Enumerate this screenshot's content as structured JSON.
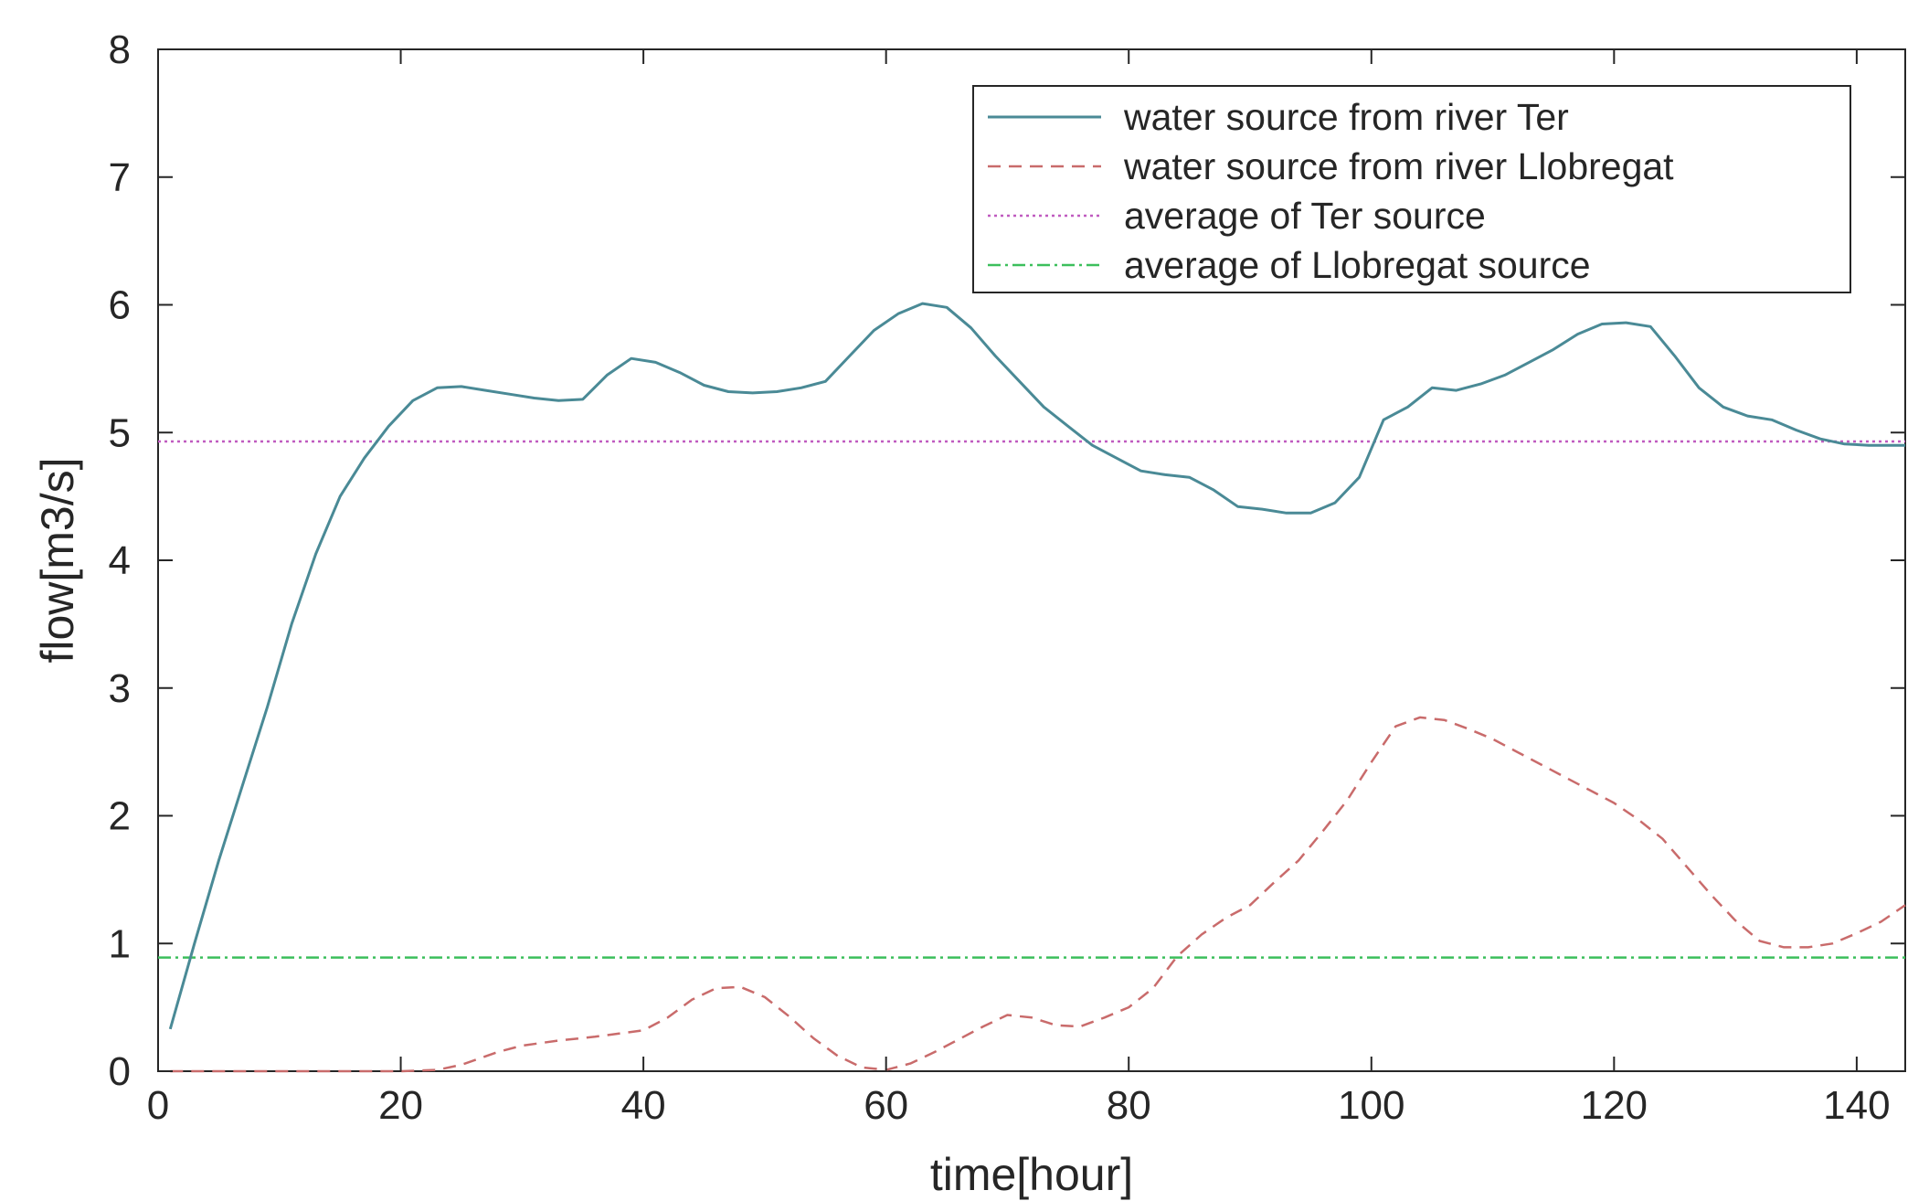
{
  "chart_data": {
    "type": "line",
    "title": "",
    "xlabel": "time[hour]",
    "ylabel": "flow[m3/s]",
    "xlim": [
      0,
      144
    ],
    "ylim": [
      0,
      8
    ],
    "xticks": [
      0,
      20,
      40,
      60,
      80,
      100,
      120,
      140
    ],
    "yticks": [
      0,
      1,
      2,
      3,
      4,
      5,
      6,
      7,
      8
    ],
    "grid": false,
    "legend_position": "top-right",
    "series": [
      {
        "name": "water source from river Ter",
        "style": "solid",
        "color": "#4a8a96",
        "x": [
          1,
          3,
          5,
          7,
          9,
          11,
          13,
          15,
          17,
          19,
          21,
          23,
          25,
          27,
          29,
          31,
          33,
          35,
          37,
          39,
          41,
          43,
          45,
          47,
          49,
          51,
          53,
          55,
          57,
          59,
          61,
          63,
          65,
          67,
          69,
          71,
          73,
          75,
          77,
          79,
          81,
          83,
          85,
          87,
          89,
          91,
          93,
          95,
          97,
          99,
          101,
          103,
          105,
          107,
          109,
          111,
          113,
          115,
          117,
          119,
          121,
          123,
          125,
          127,
          129,
          131,
          133,
          135,
          137,
          139,
          141,
          144
        ],
        "values": [
          0.33,
          1.0,
          1.65,
          2.25,
          2.85,
          3.5,
          4.05,
          4.5,
          4.8,
          5.05,
          5.25,
          5.35,
          5.36,
          5.33,
          5.3,
          5.27,
          5.25,
          5.26,
          5.45,
          5.58,
          5.55,
          5.47,
          5.37,
          5.32,
          5.31,
          5.32,
          5.35,
          5.4,
          5.6,
          5.8,
          5.93,
          6.01,
          5.98,
          5.82,
          5.6,
          5.4,
          5.2,
          5.05,
          4.9,
          4.8,
          4.7,
          4.67,
          4.65,
          4.55,
          4.42,
          4.4,
          4.37,
          4.37,
          4.45,
          4.65,
          5.1,
          5.2,
          5.35,
          5.33,
          5.38,
          5.45,
          5.55,
          5.65,
          5.77,
          5.85,
          5.86,
          5.83,
          5.6,
          5.35,
          5.2,
          5.13,
          5.1,
          5.02,
          4.95,
          4.91,
          4.9,
          4.9
        ]
      },
      {
        "name": "water source from river Llobregat",
        "style": "dashed",
        "color": "#c96b6b",
        "x": [
          1,
          5,
          10,
          15,
          20,
          23,
          25,
          28,
          30,
          33,
          36,
          40,
          42,
          44,
          46,
          48,
          50,
          52,
          54,
          56,
          58,
          60,
          62,
          64,
          66,
          68,
          70,
          72,
          74,
          76,
          78,
          80,
          82,
          84,
          86,
          88,
          90,
          92,
          94,
          96,
          98,
          100,
          102,
          104,
          106,
          108,
          110,
          112,
          114,
          116,
          118,
          120,
          122,
          124,
          126,
          128,
          130,
          132,
          134,
          136,
          138,
          140,
          142,
          144
        ],
        "values": [
          0.0,
          0.0,
          0.0,
          0.0,
          0.0,
          0.01,
          0.05,
          0.15,
          0.2,
          0.24,
          0.27,
          0.32,
          0.42,
          0.56,
          0.65,
          0.66,
          0.58,
          0.43,
          0.26,
          0.12,
          0.03,
          0.01,
          0.06,
          0.15,
          0.25,
          0.35,
          0.44,
          0.42,
          0.36,
          0.35,
          0.42,
          0.5,
          0.65,
          0.9,
          1.07,
          1.2,
          1.3,
          1.48,
          1.65,
          1.88,
          2.12,
          2.42,
          2.7,
          2.77,
          2.75,
          2.68,
          2.6,
          2.5,
          2.4,
          2.3,
          2.2,
          2.1,
          1.97,
          1.82,
          1.6,
          1.38,
          1.18,
          1.02,
          0.97,
          0.97,
          1.0,
          1.08,
          1.17,
          1.3
        ]
      },
      {
        "name": "average of Ter source",
        "style": "dotted",
        "color": "#c05bc0",
        "x": [
          0,
          144
        ],
        "values": [
          4.93,
          4.93
        ]
      },
      {
        "name": "average of Llobregat source",
        "style": "dashdot",
        "color": "#3cbf5c",
        "x": [
          0,
          144
        ],
        "values": [
          0.89,
          0.89
        ]
      }
    ]
  }
}
